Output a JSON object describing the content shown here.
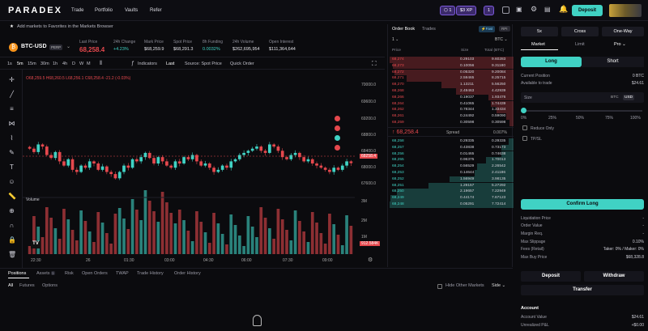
{
  "topbar": {
    "logo": "PARADEX",
    "nav": [
      "Trade",
      "Portfolio",
      "Vaults",
      "Refer"
    ],
    "tier_badge": "1",
    "xp_badge": "$3 XP",
    "xp_count": "1",
    "deposit_label": "Deposit"
  },
  "hint": {
    "text": "Add markets to Favorites in the Markets Browser"
  },
  "ticker": {
    "symbol": "BTC-USD",
    "type": "PERP",
    "stats": [
      {
        "label": "Last Price",
        "value": "68,258.4"
      },
      {
        "label": "24h Change",
        "value": "+4.23%"
      },
      {
        "label": "Mark Price",
        "value": "$68,259.9"
      },
      {
        "label": "Spot Price",
        "value": "$68,291.3"
      },
      {
        "label": "8h Funding",
        "value": "0.0032%"
      },
      {
        "label": "24h Volume",
        "value": "$262,695,954"
      },
      {
        "label": "Open Interest",
        "value": "$111,364,644"
      }
    ]
  },
  "toolbar": {
    "timeframes": [
      "1s",
      "5m",
      "15m",
      "30m",
      "1h",
      "4h",
      "D",
      "W",
      "M"
    ],
    "indicators": "Indicators",
    "last": "Last",
    "source": "Source: Spot Price",
    "quick_order": "Quick Order"
  },
  "chart": {
    "ohlc": "O68,259.5 H68,260.5 L68,256.1 C68,258.4 -21.2 (-0.03%)",
    "volume_label": "Volume",
    "price_ticks": [
      "70000.0",
      "69600.0",
      "69200.0",
      "68800.0",
      "68400.0",
      "68000.0",
      "67600.0"
    ],
    "vol_ticks": [
      "3M",
      "2M",
      "1M"
    ],
    "price_tag": "68258.4",
    "vol_tag": "912.584K",
    "time_ticks": [
      "22:30",
      "26",
      "01:30",
      "03:00",
      "04:30",
      "06:00",
      "07:30",
      "09:00"
    ]
  },
  "chart_data": {
    "type": "candlestick",
    "title": "BTC-USD",
    "ylim": [
      67600,
      70200
    ],
    "close": [
      68600,
      68520,
      68700,
      68650,
      68450,
      68380,
      68520,
      68300,
      68200,
      68350,
      68100,
      68050,
      68200,
      68150,
      68300,
      68250,
      68100,
      68180,
      68050,
      68000,
      67900,
      68050,
      68200,
      68150,
      68350,
      68300,
      68400,
      68500,
      68380,
      68250,
      68400,
      68300,
      68200,
      68150,
      68300,
      68250,
      68400,
      68350,
      68450,
      68300,
      68200,
      68250,
      68150,
      68050,
      68100,
      68200,
      68150,
      68300,
      68350,
      68450,
      68500,
      68550,
      68600,
      68650,
      68550,
      68500,
      68700,
      68650,
      68550,
      68400,
      68350,
      68450,
      68500,
      68400,
      68300,
      68350,
      68250,
      68200,
      68150,
      68100,
      68050,
      68150,
      68100,
      68200,
      68300,
      68258
    ]
  },
  "orderbook": {
    "tabs": [
      "Order Book",
      "Trades"
    ],
    "precision": "1",
    "currency": "BTC",
    "headers": [
      "Price",
      "Size",
      "Total (BTC)"
    ],
    "asks": [
      [
        "68,274",
        "0.29103",
        "9.60283"
      ],
      [
        "68,273",
        "0.10056",
        "9.31180"
      ],
      [
        "68,272",
        "0.05320",
        "9.20084"
      ],
      [
        "68,271",
        "2.59465",
        "8.25715"
      ],
      [
        "68,270",
        "1.13211",
        "5.56250"
      ],
      [
        "68,268",
        "2.49463",
        "4.42939"
      ],
      [
        "68,266",
        "0.19037",
        "1.93476"
      ],
      [
        "68,264",
        "0.41065",
        "1.74439"
      ],
      [
        "68,262",
        "0.78344",
        "1.33434"
      ],
      [
        "68,261",
        "0.24492",
        "0.59090"
      ],
      [
        "68,259",
        "0.30598",
        "0.30598"
      ]
    ],
    "spread_price": "68,258.4",
    "spread_label": "Spread",
    "spread_value": "0.007%",
    "bids": [
      [
        "68,258",
        "0.29335",
        "0.29335"
      ],
      [
        "68,257",
        "0.43838",
        "0.73173"
      ],
      [
        "68,256",
        "0.01465",
        "0.74638"
      ],
      [
        "68,255",
        "0.96375",
        "1.70013"
      ],
      [
        "68,254",
        "0.56529",
        "2.26542"
      ],
      [
        "68,253",
        "0.14644",
        "2.41186"
      ],
      [
        "68,252",
        "1.56949",
        "3.98135"
      ],
      [
        "68,251",
        "1.29157",
        "5.27292"
      ],
      [
        "68,250",
        "2.19657",
        "7.22949"
      ],
      [
        "68,249",
        "0.44174",
        "7.67123"
      ],
      [
        "68,248",
        "0.05291",
        "7.72414"
      ]
    ]
  },
  "order_panel": {
    "margin_modes": [
      "5x",
      "Cross",
      "One-Way"
    ],
    "order_types": [
      "Market",
      "Limit",
      "Pro"
    ],
    "sides": [
      "Long",
      "Short"
    ],
    "current_position_label": "Current Position",
    "current_position_value": "0 BTC",
    "available_label": "Available to trade",
    "available_value": "$24.61",
    "size_label": "Size",
    "size_units": [
      "BTC",
      "USD"
    ],
    "slider_marks": [
      "0%",
      "25%",
      "50%",
      "75%",
      "100%"
    ],
    "reduce_only": "Reduce Only",
    "tp_sl": "TP/SL",
    "confirm": "Confirm Long",
    "details": [
      [
        "Liquidation Price",
        "-"
      ],
      [
        "Order Value",
        "-"
      ],
      [
        "Margin Req.",
        "-"
      ],
      [
        "Max Slippage",
        "0.10%"
      ],
      [
        "Fees (Retail)",
        "Taker: 0% / Maker: 0%"
      ],
      [
        "Max Buy Price",
        "$68,328.8"
      ]
    ],
    "deposit": "Deposit",
    "withdraw": "Withdraw",
    "transfer": "Transfer",
    "account_title": "Account",
    "account_value_label": "Account Value",
    "account_value": "$24.61",
    "unrealized_label": "Unrealized P&L",
    "unrealized_value": "+$0.00"
  },
  "bottom": {
    "tabs": [
      "Positions",
      "Assets",
      "Risk",
      "Open Orders",
      "TWAP",
      "Trade History",
      "Order History"
    ],
    "assets_count": "1",
    "subtabs": [
      "All",
      "Futures",
      "Options"
    ],
    "hide_other": "Hide Other Markets",
    "side": "Side"
  },
  "colors": {
    "up": "#40d2c4",
    "down": "#e5484d",
    "accent": "#40d2c4"
  }
}
